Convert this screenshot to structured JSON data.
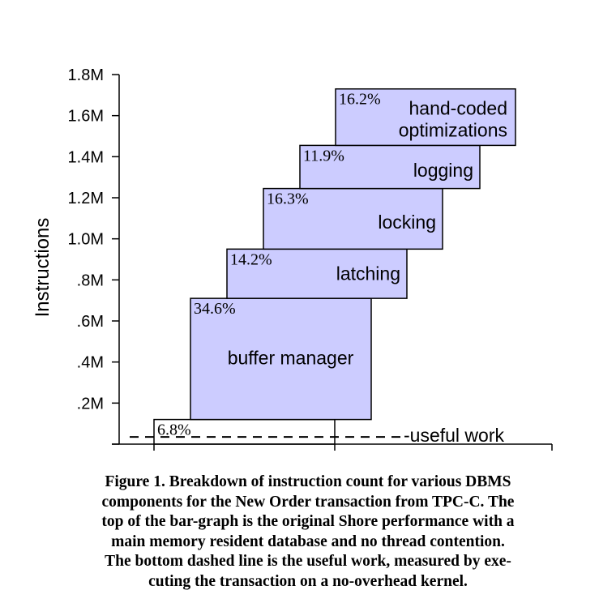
{
  "chart_data": {
    "type": "bar",
    "subtype": "stacked-waterfall",
    "ylabel": "Instructions",
    "y_ticks": [
      "",
      ".2M",
      ".4M",
      ".6M",
      ".8M",
      "1.0M",
      "1.2M",
      "1.4M",
      "1.6M",
      "1.8M"
    ],
    "y_tick_values": [
      0,
      0.2,
      0.4,
      0.6,
      0.8,
      1.0,
      1.2,
      1.4,
      1.6,
      1.8
    ],
    "ylim": [
      0,
      1.8
    ],
    "y_unit": "M",
    "segments": [
      {
        "label": "",
        "percent": "6.8%",
        "bottom": 0.0,
        "top": 0.12,
        "filled": false
      },
      {
        "label": "buffer manager",
        "percent": "34.6%",
        "bottom": 0.12,
        "top": 0.71,
        "filled": true
      },
      {
        "label": "latching",
        "percent": "14.2%",
        "bottom": 0.71,
        "top": 0.95,
        "filled": true
      },
      {
        "label": "locking",
        "percent": "16.3%",
        "bottom": 0.95,
        "top": 1.245,
        "filled": true
      },
      {
        "label": "logging",
        "percent": "11.9%",
        "bottom": 1.245,
        "top": 1.455,
        "filled": true
      },
      {
        "label": "hand-coded optimizations",
        "label_lines": [
          "hand-coded",
          "optimizations"
        ],
        "percent": "16.2%",
        "bottom": 1.455,
        "top": 1.73,
        "filled": true
      }
    ],
    "useful_work": {
      "label": "-useful work",
      "value": 0.035
    },
    "colors": {
      "fill": "#ccccff",
      "stroke": "#000000"
    }
  },
  "caption": "Figure 1.  Breakdown of instruction count for various DBMS components for the New Order transaction from TPC-C. The top of the bar-graph is the original Shore performance with a main memory resident database and no thread contention. The bottom dashed line is the useful work, measured by executing the transaction on a no-overhead kernel.",
  "caption_lines": [
    "Figure 1.  Breakdown of instruction count for various DBMS",
    "components for the New Order transaction from TPC-C. The",
    "top of the bar-graph is the original Shore performance with a",
    "main memory resident database and no thread contention.",
    "The bottom dashed line is the useful work, measured by exe-",
    "cuting the transaction on a no-overhead kernel."
  ]
}
